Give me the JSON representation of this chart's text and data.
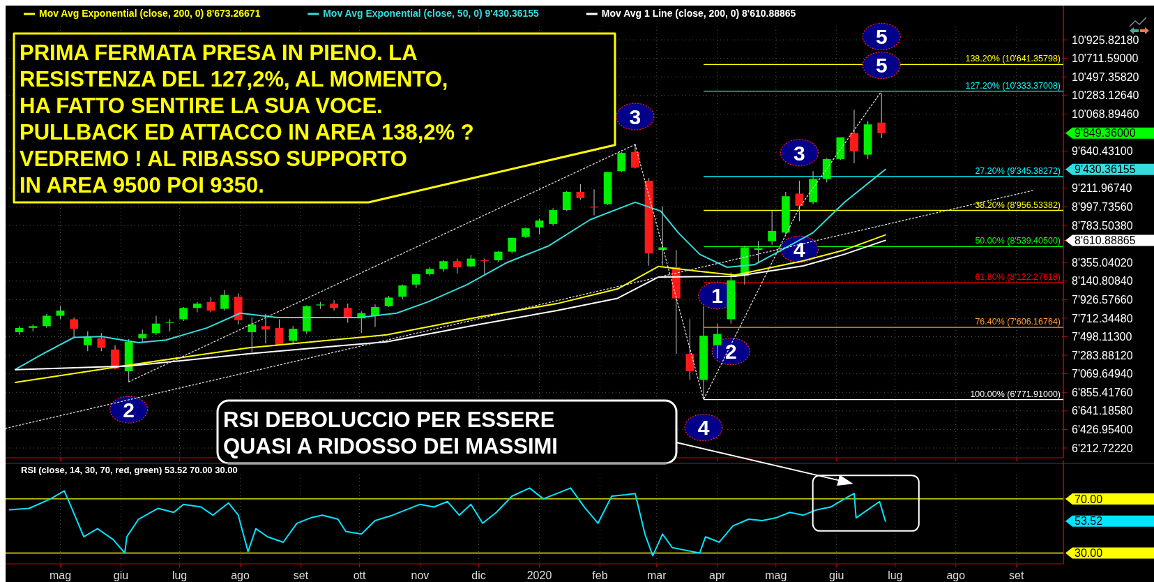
{
  "chart_data": [
    {
      "type": "candlestick",
      "legend": "top left",
      "grid": true,
      "tick_labels": "y",
      "x": [
        "2019-04-10",
        "2019-04-17",
        "2019-04-24",
        "2019-05-01",
        "2019-05-08",
        "2019-05-15",
        "2019-05-22",
        "2019-05-29",
        "2019-06-05",
        "2019-06-12",
        "2019-06-19",
        "2019-06-26",
        "2019-07-03",
        "2019-07-10",
        "2019-07-17",
        "2019-07-24",
        "2019-07-31",
        "2019-08-07",
        "2019-08-14",
        "2019-08-21",
        "2019-08-28",
        "2019-09-04",
        "2019-09-11",
        "2019-09-18",
        "2019-09-25",
        "2019-10-02",
        "2019-10-09",
        "2019-10-16",
        "2019-10-23",
        "2019-10-30",
        "2019-11-06",
        "2019-11-13",
        "2019-11-20",
        "2019-11-27",
        "2019-12-04",
        "2019-12-11",
        "2019-12-18",
        "2019-12-25",
        "2020-01-01",
        "2020-01-08",
        "2020-01-15",
        "2020-01-22",
        "2020-01-29",
        "2020-02-05",
        "2020-02-12",
        "2020-02-19",
        "2020-02-26",
        "2020-03-04",
        "2020-03-11",
        "2020-03-18",
        "2020-03-25",
        "2020-04-01",
        "2020-04-08",
        "2020-04-15",
        "2020-04-22",
        "2020-04-29",
        "2020-05-06",
        "2020-05-13",
        "2020-05-20",
        "2020-05-27",
        "2020-06-03",
        "2020-06-10",
        "2020-06-17",
        "2020-06-24"
      ],
      "ohlc": [
        [
          7550,
          7620,
          7520,
          7600
        ],
        [
          7600,
          7640,
          7560,
          7620
        ],
        [
          7620,
          7760,
          7600,
          7740
        ],
        [
          7740,
          7850,
          7700,
          7800
        ],
        [
          7700,
          7720,
          7480,
          7590
        ],
        [
          7400,
          7560,
          7330,
          7500
        ],
        [
          7480,
          7540,
          7330,
          7370
        ],
        [
          7350,
          7400,
          7120,
          7130
        ],
        [
          7100,
          7470,
          6978,
          7440
        ],
        [
          7480,
          7580,
          7440,
          7530
        ],
        [
          7540,
          7740,
          7520,
          7650
        ],
        [
          7660,
          7700,
          7560,
          7670
        ],
        [
          7700,
          7840,
          7680,
          7830
        ],
        [
          7830,
          7900,
          7780,
          7880
        ],
        [
          7900,
          7960,
          7780,
          7800
        ],
        [
          7820,
          8035,
          7800,
          7980
        ],
        [
          7960,
          8000,
          7640,
          7690
        ],
        [
          7550,
          7720,
          7320,
          7640
        ],
        [
          7620,
          7760,
          7420,
          7580
        ],
        [
          7600,
          7700,
          7400,
          7400
        ],
        [
          7450,
          7620,
          7420,
          7590
        ],
        [
          7560,
          7860,
          7530,
          7850
        ],
        [
          7860,
          7900,
          7820,
          7870
        ],
        [
          7880,
          7920,
          7800,
          7830
        ],
        [
          7830,
          7880,
          7660,
          7720
        ],
        [
          7710,
          7790,
          7540,
          7770
        ],
        [
          7740,
          7870,
          7610,
          7840
        ],
        [
          7850,
          7970,
          7840,
          7950
        ],
        [
          7960,
          8100,
          7930,
          8090
        ],
        [
          8100,
          8230,
          8060,
          8220
        ],
        [
          8220,
          8300,
          8200,
          8280
        ],
        [
          8280,
          8380,
          8250,
          8370
        ],
        [
          8370,
          8400,
          8230,
          8300
        ],
        [
          8310,
          8440,
          8300,
          8400
        ],
        [
          8380,
          8400,
          8220,
          8370
        ],
        [
          8380,
          8490,
          8360,
          8480
        ],
        [
          8480,
          8640,
          8460,
          8640
        ],
        [
          8650,
          8760,
          8640,
          8750
        ],
        [
          8760,
          8860,
          8680,
          8840
        ],
        [
          8800,
          8980,
          8780,
          8960
        ],
        [
          8960,
          9180,
          8950,
          9170
        ],
        [
          9170,
          9260,
          9080,
          9100
        ],
        [
          9000,
          9200,
          8900,
          8990
        ],
        [
          9030,
          9400,
          9020,
          9400
        ],
        [
          9410,
          9630,
          9400,
          9620
        ],
        [
          9630,
          9718,
          9440,
          9450
        ],
        [
          9300,
          9330,
          8320,
          8460
        ],
        [
          8500,
          9000,
          8320,
          8530
        ],
        [
          8300,
          8500,
          7300,
          7940
        ],
        [
          7300,
          7700,
          7000,
          7100
        ],
        [
          7000,
          7850,
          6771.91,
          7510
        ],
        [
          7400,
          7650,
          7250,
          7530
        ],
        [
          7700,
          8240,
          7650,
          8150
        ],
        [
          8200,
          8550,
          8100,
          8530
        ],
        [
          8500,
          8600,
          8350,
          8520
        ],
        [
          8600,
          8950,
          8560,
          8720
        ],
        [
          8700,
          9170,
          8680,
          9120
        ],
        [
          9150,
          9300,
          8830,
          9010
        ],
        [
          9050,
          9410,
          9030,
          9320
        ],
        [
          9320,
          9560,
          9280,
          9550
        ],
        [
          9550,
          9800,
          9540,
          9800
        ],
        [
          9850,
          10120,
          9500,
          9640
        ],
        [
          9600,
          9990,
          9550,
          9950
        ],
        [
          9970,
          10310,
          9790,
          9849.36
        ]
      ],
      "series": [
        {
          "type": "line",
          "name": "Mov Avg Exponential (close, 200, 0) 8'673.26671",
          "color": "#ffff00",
          "x": [
            "2019-04-08",
            "2019-06-05",
            "2019-08-05",
            "2019-10-15",
            "2019-12-02",
            "2020-01-10",
            "2020-02-10",
            "2020-03-02",
            "2020-03-20",
            "2020-04-10",
            "2020-05-15",
            "2020-06-05",
            "2020-06-26"
          ],
          "values": [
            6970,
            7170,
            7370,
            7520,
            7730,
            7880,
            8050,
            8310,
            8260,
            8210,
            8375,
            8500,
            8673.26671
          ]
        },
        {
          "type": "line",
          "name": "Mov Avg Exponential (close, 50, 0) 9'430.36155",
          "color": "#33dddd",
          "x": [
            "2019-04-08",
            "2019-04-22",
            "2019-05-08",
            "2019-05-22",
            "2019-06-10",
            "2019-06-24",
            "2019-07-15",
            "2019-08-01",
            "2019-08-20",
            "2019-09-10",
            "2019-10-01",
            "2019-10-20",
            "2019-11-05",
            "2019-11-25",
            "2019-12-15",
            "2020-01-06",
            "2020-01-27",
            "2020-02-19",
            "2020-03-03",
            "2020-03-12",
            "2020-03-23",
            "2020-04-06",
            "2020-04-20",
            "2020-05-04",
            "2020-05-20",
            "2020-06-05",
            "2020-06-26"
          ],
          "values": [
            7120,
            7300,
            7490,
            7500,
            7430,
            7460,
            7600,
            7770,
            7720,
            7720,
            7720,
            7770,
            7900,
            8100,
            8350,
            8550,
            8850,
            9050,
            8950,
            8700,
            8450,
            8300,
            8330,
            8500,
            8700,
            9050,
            9430.36155
          ]
        },
        {
          "type": "line",
          "name": "Mov Avg 1 Line (close, 200, 0) 8'610.88865",
          "color": "#ffffff",
          "x": [
            "2019-04-08",
            "2019-06-05",
            "2019-08-05",
            "2019-10-15",
            "2019-12-02",
            "2020-01-10",
            "2020-02-10",
            "2020-03-02",
            "2020-04-10",
            "2020-05-15",
            "2020-06-05",
            "2020-06-26"
          ],
          "values": [
            7117,
            7160,
            7300,
            7440,
            7644,
            7800,
            7942,
            8188,
            8196,
            8316,
            8450,
            8610.88865
          ]
        },
        {
          "type": "line",
          "line_style": "dotted",
          "color": "#dddddd",
          "x": [
            "2019-06-05",
            "2020-02-19"
          ],
          "values": [
            6978,
            9718
          ]
        },
        {
          "type": "line",
          "line_style": "dotted",
          "color": "#dddddd",
          "x": [
            "2019-04-03",
            "2020-09-10"
          ],
          "values": [
            6440,
            9190
          ]
        },
        {
          "type": "line",
          "line_style": "dotted",
          "color": "#dddddd",
          "x": [
            "2020-02-19",
            "2020-03-25",
            "2020-05-13",
            "2020-06-24"
          ],
          "values": [
            9718,
            6771.91,
            8990,
            10333
          ]
        }
      ],
      "xlim": [
        "2019-04-03",
        "2020-09-25"
      ],
      "xticks": [
        {
          "value": "2019-05-01",
          "label": null
        },
        {
          "value": "2019-06-01",
          "label": null
        },
        {
          "value": "2019-07-01",
          "label": null
        },
        {
          "value": "2019-08-01",
          "label": null
        },
        {
          "value": "2019-09-01",
          "label": null
        },
        {
          "value": "2019-10-01",
          "label": null
        },
        {
          "value": "2019-11-01",
          "label": null
        },
        {
          "value": "2019-12-01",
          "label": null
        },
        {
          "value": "2020-01-01",
          "label": null
        },
        {
          "value": "2020-02-01",
          "label": null
        },
        {
          "value": "2020-03-01",
          "label": null
        },
        {
          "value": "2020-04-01",
          "label": null
        },
        {
          "value": "2020-05-01",
          "label": null
        },
        {
          "value": "2020-06-01",
          "label": null
        },
        {
          "value": "2020-07-01",
          "label": null
        },
        {
          "value": "2020-08-01",
          "label": null
        },
        {
          "value": "2020-09-01",
          "label": null
        }
      ],
      "ylim": [
        6100,
        11080
      ],
      "yticks": [
        {
          "value": 10925.8218,
          "label": "10'925.82180"
        },
        {
          "value": 10711.59,
          "label": "10'711.59000"
        },
        {
          "value": 10497.3582,
          "label": "10'497.35820"
        },
        {
          "value": 10283.1264,
          "label": "10'283.12640"
        },
        {
          "value": 10068.8946,
          "label": "10'068.89460"
        },
        {
          "value": 9849.36,
          "label": "9'849.36000"
        },
        {
          "value": 9640.431,
          "label": "9'640.43100"
        },
        {
          "value": 9430.36155,
          "label": "9'430.36155"
        },
        {
          "value": 9211.9674,
          "label": "9'211.96740"
        },
        {
          "value": 8997.7356,
          "label": "8'997.73560"
        },
        {
          "value": 8783.5038,
          "label": "8'783.50380"
        },
        {
          "value": 8610.88865,
          "label": "8'610.88865"
        },
        {
          "value": 8355.0402,
          "label": "8'355.04020"
        },
        {
          "value": 8140.8084,
          "label": "8'140.80840"
        },
        {
          "value": 7926.5766,
          "label": "7'926.57660"
        },
        {
          "value": 7712.3448,
          "label": "7'712.34480"
        },
        {
          "value": 7498.113,
          "label": "7'498.11300"
        },
        {
          "value": 7283.8812,
          "label": "7'283.88120"
        },
        {
          "value": 7069.6494,
          "label": "7'069.64940"
        },
        {
          "value": 6855.4176,
          "label": "6'855.41760"
        },
        {
          "value": 6641.1858,
          "label": "6'641.18580"
        },
        {
          "value": 6426.954,
          "label": "6'426.95400"
        },
        {
          "value": 6212.7222,
          "label": "6'212.72220"
        }
      ],
      "ref_lines": [
        {
          "axis": "y",
          "value": 10641.35798,
          "label": "138.20% (10'641.35798)",
          "color": "#ffff00"
        },
        {
          "axis": "y",
          "value": 10333.37008,
          "label": "127.20% (10'333.37008)",
          "color": "#00ffff"
        },
        {
          "axis": "y",
          "value": 9345.38272,
          "label": "27.20% (9'345.38272)",
          "color": "#00ffff"
        },
        {
          "axis": "y",
          "value": 8956.53382,
          "label": "38.20% (8'956.53382)",
          "color": "#ffff00"
        },
        {
          "axis": "y",
          "value": 8539.405,
          "label": "50.00% (8'539.40500)",
          "color": "#00ff00"
        },
        {
          "axis": "y",
          "value": 8122.27618,
          "label": "61.80% (8'122.27618)",
          "color": "#ff0000"
        },
        {
          "axis": "y",
          "value": 7606.16764,
          "label": "76.40% (7'606.16764)",
          "color": "#ff9933"
        },
        {
          "axis": "y",
          "value": 6771.91,
          "label": "100.00% (6'771.91000)",
          "color": "#ffffff"
        }
      ],
      "annotations": [
        "PRIMA FERMATA PRESA IN PIENO. LA\nRESISTENZA DEL 127,2%, AL MOMENTO,\nHA FATTO SENTIRE LA SUA VOCE.\nPULLBACK ED ATTACCO IN AREA 138,2% ?\nVEDREMO ! AL RIBASSO SUPPORTO\nIN AREA 9500 POI 9350.",
        "RSI DEBOLUCCIO PER ESSERE\nQUASI A RIDOSSO DEI MASSIMI",
        {
          "text": "5",
          "x": "2020-06-24",
          "y": 10641.35798
        },
        {
          "text": "5",
          "x": "2020-06-24",
          "y": 10310
        },
        {
          "text": "3",
          "x": "2020-02-19",
          "y": 9718
        },
        {
          "text": "3",
          "x": "2020-05-13",
          "y": 9300
        },
        {
          "text": "2",
          "x": "2019-06-05",
          "y": 6978
        },
        {
          "text": "1",
          "x": "2020-04-01",
          "y": 7650
        },
        {
          "text": "2",
          "x": "2020-04-08",
          "y": 7650
        },
        {
          "text": "4",
          "x": "2020-05-13",
          "y": 8830
        },
        {
          "text": "4",
          "x": "2020-03-25",
          "y": 6771.91
        }
      ]
    },
    {
      "type": "line",
      "title": "RSI   (close, 14, 30, 70, red, green)  53.52  70.00  30.00",
      "grid": "x",
      "x": [
        "2019-04-05",
        "2019-04-15",
        "2019-04-26",
        "2019-05-03",
        "2019-05-06",
        "2019-05-13",
        "2019-05-20",
        "2019-05-28",
        "2019-06-03",
        "2019-06-04",
        "2019-06-10",
        "2019-06-20",
        "2019-06-28",
        "2019-07-03",
        "2019-07-12",
        "2019-07-18",
        "2019-07-26",
        "2019-07-31",
        "2019-08-05",
        "2019-08-09",
        "2019-08-15",
        "2019-08-23",
        "2019-08-30",
        "2019-09-06",
        "2019-09-12",
        "2019-09-20",
        "2019-09-24",
        "2019-10-02",
        "2019-10-09",
        "2019-10-18",
        "2019-10-25",
        "2019-11-01",
        "2019-11-08",
        "2019-11-15",
        "2019-11-21",
        "2019-11-27",
        "2019-12-03",
        "2019-12-10",
        "2019-12-18",
        "2019-12-27",
        "2020-01-03",
        "2020-01-10",
        "2020-01-17",
        "2020-01-24",
        "2020-01-31",
        "2020-02-07",
        "2020-02-14",
        "2020-02-19",
        "2020-02-24",
        "2020-02-28",
        "2020-03-04",
        "2020-03-09",
        "2020-03-16",
        "2020-03-23",
        "2020-03-26",
        "2020-04-02",
        "2020-04-09",
        "2020-04-17",
        "2020-04-24",
        "2020-05-01",
        "2020-05-08",
        "2020-05-15",
        "2020-05-22",
        "2020-05-29",
        "2020-06-05",
        "2020-06-10",
        "2020-06-11",
        "2020-06-17",
        "2020-06-23",
        "2020-06-26"
      ],
      "series": [
        {
          "color": "#00e5ff",
          "values": [
            62,
            63,
            70,
            76,
            66,
            42,
            48,
            40,
            30,
            42,
            55,
            63,
            60,
            66,
            64,
            58,
            67,
            58,
            31,
            48,
            42,
            38,
            52,
            56,
            58,
            55,
            46,
            44,
            54,
            58,
            62,
            66,
            64,
            68,
            58,
            66,
            52,
            60,
            72,
            78,
            70,
            74,
            78,
            64,
            52,
            72,
            73,
            74,
            44,
            28,
            44,
            34,
            32,
            30,
            42,
            38,
            50,
            55,
            54,
            56,
            60,
            58,
            62,
            64,
            70,
            74,
            56,
            62,
            68,
            53.52
          ]
        }
      ],
      "xlim": [
        "2019-04-03",
        "2020-09-25"
      ],
      "xticks": [
        {
          "value": "2019-05-01",
          "label": "mag"
        },
        {
          "value": "2019-06-01",
          "label": "giu"
        },
        {
          "value": "2019-07-01",
          "label": "lug"
        },
        {
          "value": "2019-08-01",
          "label": "ago"
        },
        {
          "value": "2019-09-01",
          "label": "set"
        },
        {
          "value": "2019-10-01",
          "label": "ott"
        },
        {
          "value": "2019-11-01",
          "label": "nov"
        },
        {
          "value": "2019-12-01",
          "label": "dic"
        },
        {
          "value": "2020-01-01",
          "label": "2020"
        },
        {
          "value": "2020-02-01",
          "label": "feb"
        },
        {
          "value": "2020-03-01",
          "label": "mar"
        },
        {
          "value": "2020-04-01",
          "label": "apr"
        },
        {
          "value": "2020-05-01",
          "label": "mag"
        },
        {
          "value": "2020-06-01",
          "label": "giu"
        },
        {
          "value": "2020-07-01",
          "label": "lug"
        },
        {
          "value": "2020-08-01",
          "label": "ago"
        },
        {
          "value": "2020-09-01",
          "label": "set"
        }
      ],
      "ylim": [
        22,
        88
      ],
      "yticks": [
        {
          "value": 70,
          "label": "70.00"
        },
        {
          "value": 53.52,
          "label": "53.52"
        },
        {
          "value": 30,
          "label": "30.00"
        }
      ],
      "ref_lines": [
        {
          "axis": "y",
          "value": 70,
          "color": "#ffff00"
        },
        {
          "axis": "y",
          "value": 30,
          "color": "#ffff00"
        }
      ]
    }
  ]
}
